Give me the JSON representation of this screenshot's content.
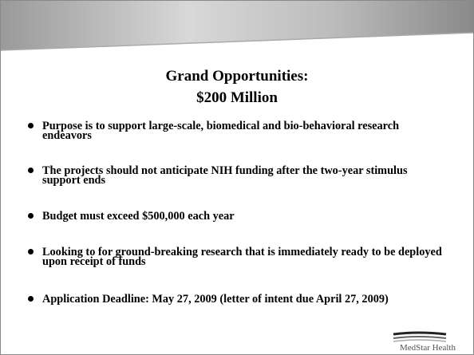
{
  "title": [
    "Grand Opportunities:",
    "$200 Million"
  ],
  "bullets": [
    "Purpose is to support large-scale, biomedical and bio-behavioral research endeavors",
    "The projects should not anticipate NIH funding after the two-year stimulus support ends",
    "Budget must exceed $500,000 each year",
    "Looking to for ground-breaking research that is immediately ready to be deployed upon receipt of funds",
    "Application Deadline: May 27, 2009 (letter of intent due April 27, 2009)"
  ],
  "logo": "MedStar Health"
}
